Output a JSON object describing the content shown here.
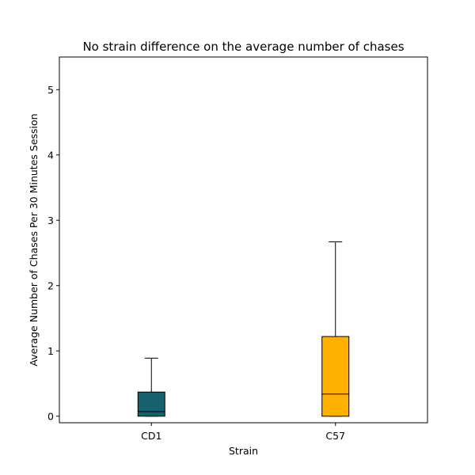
{
  "chart_data": {
    "type": "box",
    "title": "No strain difference on the average number of chases",
    "xlabel": "Strain",
    "ylabel": "Average Number of Chases Per 30 Minutes Session",
    "ylim": [
      -0.1,
      5.5
    ],
    "yticks": [
      "0",
      "1",
      "2",
      "3",
      "4",
      "5"
    ],
    "grid": false,
    "categories": [
      "CD1",
      "C57"
    ],
    "boxes": [
      {
        "category": "CD1",
        "whisker_low": 0.0,
        "q1": 0.0,
        "median": 0.07,
        "q3": 0.37,
        "whisker_high": 0.89,
        "color": "#17606e"
      },
      {
        "category": "C57",
        "whisker_low": 0.0,
        "q1": 0.0,
        "median": 0.34,
        "q3": 1.22,
        "whisker_high": 2.67,
        "color": "#ffb000"
      }
    ]
  }
}
